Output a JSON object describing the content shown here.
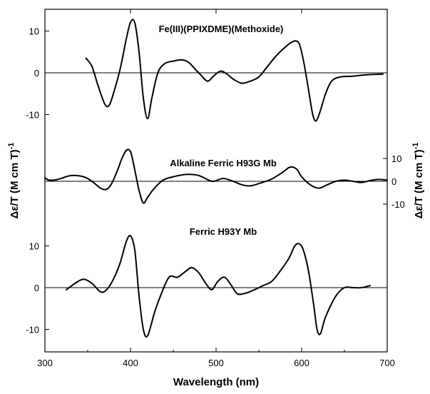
{
  "chart_data": {
    "type": "line",
    "xlabel": "Wavelength (nm)",
    "ylabel_left": "Δε/T (M cm T)",
    "ylabel_right": "Δε/T (M cm T)",
    "ylabel_superscript": "-1",
    "xlim": [
      300,
      700
    ],
    "x_ticks": [
      "300",
      "400",
      "500",
      "600",
      "700"
    ],
    "series": [
      {
        "name": "Fe(III)(PPIXDME)(Methoxide)",
        "axis": "left-top",
        "ylim": [
          -14,
          14
        ],
        "y_ticks": [
          {
            "value": 10,
            "label": "10"
          },
          {
            "value": 0,
            "label": "0"
          },
          {
            "value": -10,
            "label": "-10"
          }
        ],
        "x": [
          348,
          355,
          362,
          370,
          375,
          380,
          388,
          395,
          400,
          405,
          410,
          415,
          420,
          425,
          432,
          440,
          450,
          460,
          468,
          475,
          482,
          490,
          497,
          505,
          512,
          520,
          530,
          540,
          550,
          560,
          570,
          580,
          588,
          594,
          598,
          603,
          608,
          613,
          617,
          622,
          628,
          635,
          645,
          660,
          675,
          695
        ],
        "values": [
          3.5,
          1.5,
          -3,
          -7.5,
          -7.8,
          -5,
          1,
          8,
          12.1,
          12,
          5,
          -6,
          -11,
          -6,
          0,
          2.2,
          2.8,
          3.1,
          2.5,
          1,
          -0.5,
          -2,
          -0.8,
          0.4,
          -0.2,
          -1.5,
          -2.5,
          -2,
          -1,
          1.5,
          4,
          6,
          7.3,
          7.6,
          6.5,
          2,
          -4,
          -10,
          -11.5,
          -9,
          -5,
          -2,
          -1,
          -0.8,
          -0.5,
          -0.3
        ]
      },
      {
        "name": "Alkaline Ferric H93G Mb",
        "axis": "right",
        "ylim": [
          -14,
          14
        ],
        "y_ticks": [
          {
            "value": 10,
            "label": "10"
          },
          {
            "value": 0,
            "label": "0"
          },
          {
            "value": -10,
            "label": "-10"
          }
        ],
        "x": [
          300,
          305,
          315,
          330,
          345,
          355,
          365,
          372,
          378,
          385,
          390,
          395,
          400,
          405,
          410,
          415,
          420,
          428,
          438,
          450,
          465,
          480,
          495,
          505,
          510,
          520,
          530,
          540,
          550,
          565,
          578,
          585,
          590,
          595,
          600,
          610,
          620,
          630,
          640,
          650,
          660,
          670,
          680,
          690,
          700
        ],
        "values": [
          1.5,
          0.5,
          0.8,
          2.5,
          2,
          0,
          -3,
          -3.5,
          -1,
          5,
          10,
          13.5,
          13,
          5,
          -4,
          -9.5,
          -7,
          -3,
          0.5,
          2,
          3,
          2.5,
          0,
          1,
          1.2,
          0,
          -1.5,
          -2,
          -1,
          1,
          4,
          6,
          6.2,
          5,
          2,
          -1.5,
          -3,
          -1.5,
          0,
          0.5,
          0,
          -0.5,
          0.3,
          0.8,
          0.5
        ]
      },
      {
        "name": "Ferric H93Y Mb",
        "axis": "left-bottom",
        "ylim": [
          -14,
          14
        ],
        "y_ticks": [
          {
            "value": 10,
            "label": "10"
          },
          {
            "value": 0,
            "label": "0"
          },
          {
            "value": -10,
            "label": "-10"
          }
        ],
        "x": [
          325,
          335,
          345,
          355,
          365,
          372,
          380,
          388,
          395,
          400,
          405,
          410,
          415,
          420,
          428,
          435,
          445,
          455,
          465,
          472,
          480,
          488,
          495,
          502,
          510,
          518,
          525,
          535,
          545,
          555,
          565,
          575,
          585,
          592,
          597,
          602,
          608,
          614,
          618,
          622,
          628,
          640,
          650,
          660,
          670,
          680
        ],
        "values": [
          -0.5,
          1,
          2,
          1,
          -1,
          -0.5,
          2,
          6,
          11,
          12.4,
          9,
          -2,
          -10,
          -11.5,
          -6,
          -2,
          2.5,
          2.5,
          4,
          4.8,
          3.5,
          1,
          -0.5,
          1.5,
          2.5,
          0.5,
          -1.5,
          -1.3,
          -0.5,
          0.5,
          1.5,
          4,
          7,
          10,
          10.5,
          9,
          4,
          -4,
          -10,
          -11,
          -7,
          -2,
          0,
          0,
          0,
          0.5
        ]
      }
    ]
  }
}
